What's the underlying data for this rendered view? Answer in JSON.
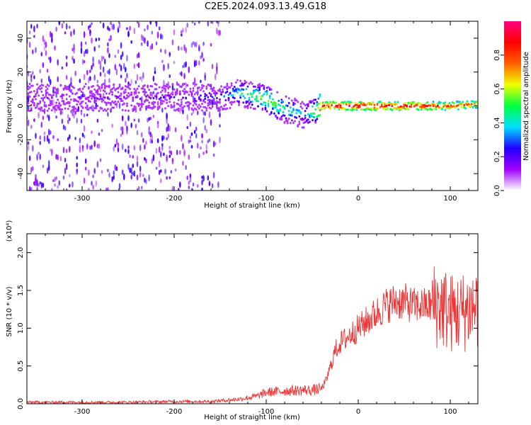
{
  "title": "C2E5.2024.093.13.49.G18",
  "colors": {
    "spectrogram_mark": "#6a00ff",
    "snr_line": "#f03232",
    "frame": "#000000",
    "background": "#ffffff"
  },
  "chart_data": [
    {
      "type": "heatmap",
      "xlabel": "Height of straight line (km)",
      "ylabel": "Frequency (Hz)",
      "xlim": [
        -360,
        130
      ],
      "ylim": [
        -50,
        50
      ],
      "xticks": [
        -300,
        -200,
        -100,
        0,
        100
      ],
      "yticks": [
        -40,
        -20,
        0,
        20,
        40
      ],
      "grid": false,
      "colorbar": {
        "label": "Normalized spectral amplitude",
        "ticks": [
          "0.0",
          "0.2",
          "0.4",
          "0.6",
          "0.8"
        ],
        "range": [
          0,
          1
        ],
        "colormap": [
          "#ffffff",
          "#a000ff",
          "#2000ff",
          "#00e0ff",
          "#00ff40",
          "#f0ff00",
          "#ff6000",
          "#ff0000",
          "#ff0080"
        ]
      },
      "ridge": {
        "x": [
          -360,
          -250,
          -150,
          -130,
          -100,
          -80,
          -60,
          -45,
          -40,
          0,
          50,
          100,
          130
        ],
        "frequency": [
          5,
          5,
          5,
          8,
          4,
          -2,
          -5,
          -3,
          0,
          0,
          0,
          0,
          1
        ],
        "amplitude": [
          0.1,
          0.15,
          0.25,
          0.45,
          0.6,
          0.5,
          0.35,
          0.6,
          0.9,
          0.95,
          0.9,
          0.85,
          0.75
        ]
      }
    },
    {
      "type": "line",
      "xlabel": "Height of straight line (km)",
      "ylabel": "SNR (10 * v/v)",
      "scale_label": "(x10⁴)",
      "xlim": [
        -360,
        130
      ],
      "ylim": [
        0,
        2.25
      ],
      "xticks": [
        -300,
        -200,
        -100,
        0,
        100
      ],
      "yticks": [
        "0.0",
        "0.5",
        "1.0",
        "1.5",
        "2.0"
      ],
      "grid": false,
      "series": [
        {
          "color": "#f03232",
          "x": [
            -360,
            -300,
            -250,
            -200,
            -160,
            -130,
            -110,
            -100,
            -80,
            -60,
            -50,
            -40,
            -35,
            -30,
            -25,
            -20,
            -15,
            -10,
            -5,
            0,
            10,
            20,
            30,
            40,
            50,
            60,
            70,
            80,
            90,
            100,
            110,
            120,
            130
          ],
          "y": [
            0.02,
            0.02,
            0.02,
            0.03,
            0.03,
            0.06,
            0.1,
            0.15,
            0.17,
            0.18,
            0.18,
            0.2,
            0.3,
            0.5,
            0.7,
            0.8,
            0.85,
            0.9,
            0.95,
            1.0,
            1.1,
            1.2,
            1.3,
            1.35,
            1.35,
            1.3,
            1.3,
            1.3,
            1.3,
            1.2,
            1.2,
            1.25,
            1.3
          ]
        }
      ]
    }
  ]
}
